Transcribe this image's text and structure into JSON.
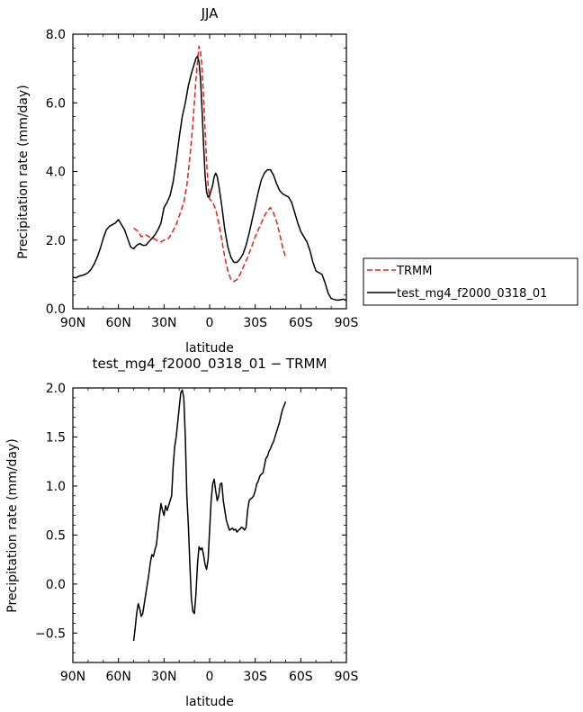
{
  "chart_data": [
    {
      "type": "line",
      "title": "JJA",
      "xlabel": "latitude",
      "ylabel": "Precipitation rate (mm/day)",
      "xlim": [
        90,
        -90
      ],
      "ylim": [
        0,
        8
      ],
      "x_ticks": [
        90,
        60,
        30,
        0,
        -30,
        -60,
        -90
      ],
      "x_tick_labels": [
        "90N",
        "60N",
        "30N",
        "0",
        "30S",
        "60S",
        "90S"
      ],
      "y_ticks": [
        0,
        2,
        4,
        6,
        8
      ],
      "y_tick_labels": [
        "0.0",
        "2.0",
        "4.0",
        "6.0",
        "8.0"
      ],
      "legend_position": "right",
      "series": [
        {
          "name": "TRMM",
          "color": "#e8201c",
          "dash": "dashed",
          "x": [
            50,
            47,
            45,
            42,
            40,
            37,
            35,
            32,
            30,
            27,
            25,
            22,
            20,
            17,
            15,
            13,
            11,
            9,
            8,
            7,
            6,
            5,
            4,
            3,
            2,
            1,
            0,
            -1,
            -2,
            -4,
            -6,
            -8,
            -10,
            -12,
            -14,
            -16,
            -18,
            -20,
            -22,
            -25,
            -28,
            -30,
            -33,
            -36,
            -38,
            -40,
            -42,
            -44,
            -46,
            -48,
            -50
          ],
          "y": [
            2.35,
            2.25,
            2.1,
            2.15,
            2.1,
            2.05,
            2.0,
            1.95,
            2.0,
            2.05,
            2.2,
            2.45,
            2.7,
            3.1,
            3.6,
            4.4,
            5.4,
            6.7,
            7.2,
            7.65,
            7.5,
            7.0,
            6.2,
            5.2,
            4.3,
            3.6,
            3.2,
            3.15,
            3.1,
            2.9,
            2.5,
            2.0,
            1.5,
            1.1,
            0.85,
            0.8,
            0.85,
            1.0,
            1.2,
            1.5,
            1.85,
            2.1,
            2.4,
            2.7,
            2.85,
            2.95,
            2.8,
            2.55,
            2.2,
            1.8,
            1.5
          ]
        },
        {
          "name": "test_mg4_f2000_0318_01",
          "color": "#000000",
          "dash": "solid",
          "x": [
            90,
            88,
            86,
            84,
            82,
            80,
            78,
            76,
            74,
            72,
            70,
            68,
            66,
            64,
            62,
            60,
            58,
            56,
            54,
            52,
            50,
            48,
            46,
            44,
            42,
            40,
            38,
            36,
            34,
            32,
            30,
            28,
            26,
            24,
            22,
            20,
            18,
            16,
            14,
            12,
            10,
            9,
            8,
            7,
            6,
            5,
            4,
            3,
            2,
            1,
            0,
            -1,
            -2,
            -3,
            -4,
            -5,
            -6,
            -8,
            -10,
            -12,
            -14,
            -16,
            -18,
            -20,
            -22,
            -24,
            -26,
            -28,
            -30,
            -32,
            -34,
            -36,
            -38,
            -40,
            -42,
            -44,
            -46,
            -48,
            -50,
            -52,
            -54,
            -56,
            -58,
            -60,
            -62,
            -64,
            -66,
            -68,
            -70,
            -72,
            -74,
            -76,
            -78,
            -80,
            -82,
            -84,
            -86,
            -88,
            -90
          ],
          "y": [
            0.92,
            0.9,
            0.95,
            0.97,
            1.0,
            1.05,
            1.15,
            1.3,
            1.5,
            1.75,
            2.05,
            2.3,
            2.4,
            2.45,
            2.5,
            2.6,
            2.45,
            2.3,
            2.05,
            1.8,
            1.75,
            1.85,
            1.9,
            1.85,
            1.85,
            1.95,
            2.05,
            2.15,
            2.3,
            2.5,
            2.95,
            3.1,
            3.3,
            3.7,
            4.3,
            5.0,
            5.6,
            6.0,
            6.5,
            6.85,
            7.15,
            7.3,
            7.35,
            7.2,
            6.7,
            5.8,
            4.8,
            3.9,
            3.4,
            3.25,
            3.3,
            3.45,
            3.6,
            3.85,
            3.95,
            3.85,
            3.6,
            3.0,
            2.3,
            1.8,
            1.5,
            1.35,
            1.35,
            1.45,
            1.6,
            1.85,
            2.2,
            2.6,
            3.0,
            3.4,
            3.75,
            3.95,
            4.05,
            4.05,
            3.9,
            3.65,
            3.45,
            3.35,
            3.3,
            3.25,
            3.1,
            2.8,
            2.5,
            2.25,
            2.1,
            1.95,
            1.7,
            1.35,
            1.1,
            1.05,
            1.0,
            0.75,
            0.45,
            0.3,
            0.27,
            0.25,
            0.26,
            0.28,
            0.24
          ]
        }
      ]
    },
    {
      "type": "line",
      "title": "test_mg4_f2000_0318_01 − TRMM",
      "xlabel": "latitude",
      "ylabel": "Precipitation rate (mm/day)",
      "xlim": [
        90,
        -90
      ],
      "ylim": [
        -0.8,
        2.0
      ],
      "x_ticks": [
        90,
        60,
        30,
        0,
        -30,
        -60,
        -90
      ],
      "x_tick_labels": [
        "90N",
        "60N",
        "30N",
        "0",
        "30S",
        "60S",
        "90S"
      ],
      "y_ticks": [
        -0.5,
        0.0,
        0.5,
        1.0,
        1.5,
        2.0
      ],
      "y_tick_labels": [
        "−0.5",
        "0.0",
        "0.5",
        "1.0",
        "1.5",
        "2.0"
      ],
      "series": [
        {
          "color": "#000000",
          "dash": "solid",
          "x": [
            50,
            49,
            48,
            47,
            46,
            45,
            44,
            43,
            42,
            41,
            40,
            39,
            38,
            37,
            36,
            35,
            34,
            33,
            32,
            31,
            30,
            29,
            28,
            27,
            26,
            25,
            24,
            23,
            22,
            21,
            20,
            19,
            18,
            17,
            16,
            15,
            14,
            13,
            12,
            11,
            10,
            9,
            8,
            7,
            6,
            5,
            4,
            3,
            2,
            1,
            0,
            -1,
            -2,
            -3,
            -4,
            -5,
            -6,
            -7,
            -8,
            -9,
            -10,
            -11,
            -12,
            -13,
            -14,
            -15,
            -16,
            -17,
            -18,
            -19,
            -20,
            -21,
            -22,
            -23,
            -24,
            -25,
            -26,
            -27,
            -28,
            -29,
            -30,
            -31,
            -32,
            -33,
            -34,
            -35,
            -36,
            -37,
            -38,
            -39,
            -40,
            -41,
            -42,
            -43,
            -44,
            -45,
            -46,
            -47,
            -48,
            -49,
            -50
          ],
          "y": [
            -0.58,
            -0.45,
            -0.3,
            -0.2,
            -0.25,
            -0.33,
            -0.3,
            -0.2,
            -0.1,
            0.0,
            0.1,
            0.22,
            0.3,
            0.28,
            0.35,
            0.4,
            0.55,
            0.7,
            0.82,
            0.75,
            0.7,
            0.8,
            0.75,
            0.8,
            0.85,
            0.9,
            1.2,
            1.4,
            1.5,
            1.65,
            1.8,
            1.95,
            1.98,
            1.9,
            1.5,
            0.9,
            0.6,
            0.2,
            -0.15,
            -0.28,
            -0.3,
            -0.1,
            0.2,
            0.38,
            0.35,
            0.37,
            0.3,
            0.2,
            0.15,
            0.25,
            0.55,
            0.85,
            1.02,
            1.07,
            0.95,
            0.85,
            0.9,
            1.02,
            1.03,
            0.85,
            0.75,
            0.65,
            0.6,
            0.55,
            0.56,
            0.57,
            0.55,
            0.56,
            0.53,
            0.55,
            0.56,
            0.58,
            0.57,
            0.55,
            0.58,
            0.75,
            0.85,
            0.87,
            0.88,
            0.9,
            0.95,
            1.02,
            1.05,
            1.1,
            1.12,
            1.13,
            1.2,
            1.28,
            1.3,
            1.35,
            1.38,
            1.42,
            1.45,
            1.5,
            1.55,
            1.6,
            1.65,
            1.72,
            1.78,
            1.82,
            1.86
          ]
        }
      ]
    }
  ]
}
